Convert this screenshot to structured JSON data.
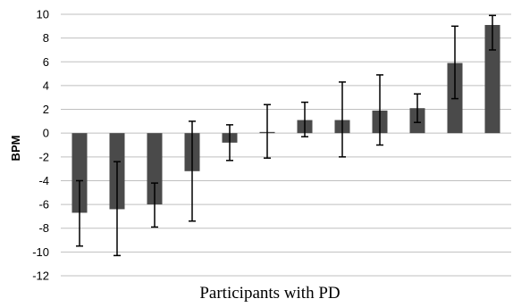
{
  "chart_data": {
    "type": "bar",
    "title": "",
    "xlabel": "Participants with PD",
    "ylabel": "BPM",
    "ylim": [
      -12,
      10
    ],
    "ytick_step": 2,
    "grid": true,
    "bar_color": "#4a4a4a",
    "grid_color": "#bfbfbf",
    "values": [
      -6.7,
      -6.4,
      -6.0,
      -3.2,
      -0.8,
      0.1,
      1.1,
      1.1,
      1.9,
      2.1,
      5.9,
      9.1
    ],
    "error_upper": [
      -4.0,
      -2.4,
      -4.2,
      1.0,
      0.7,
      2.4,
      2.6,
      4.3,
      4.9,
      3.3,
      9.0,
      9.9
    ],
    "error_lower": [
      -9.5,
      -10.3,
      -7.9,
      -7.4,
      -2.3,
      -2.1,
      -0.3,
      -2.0,
      -1.0,
      0.9,
      2.9,
      7.0
    ]
  }
}
